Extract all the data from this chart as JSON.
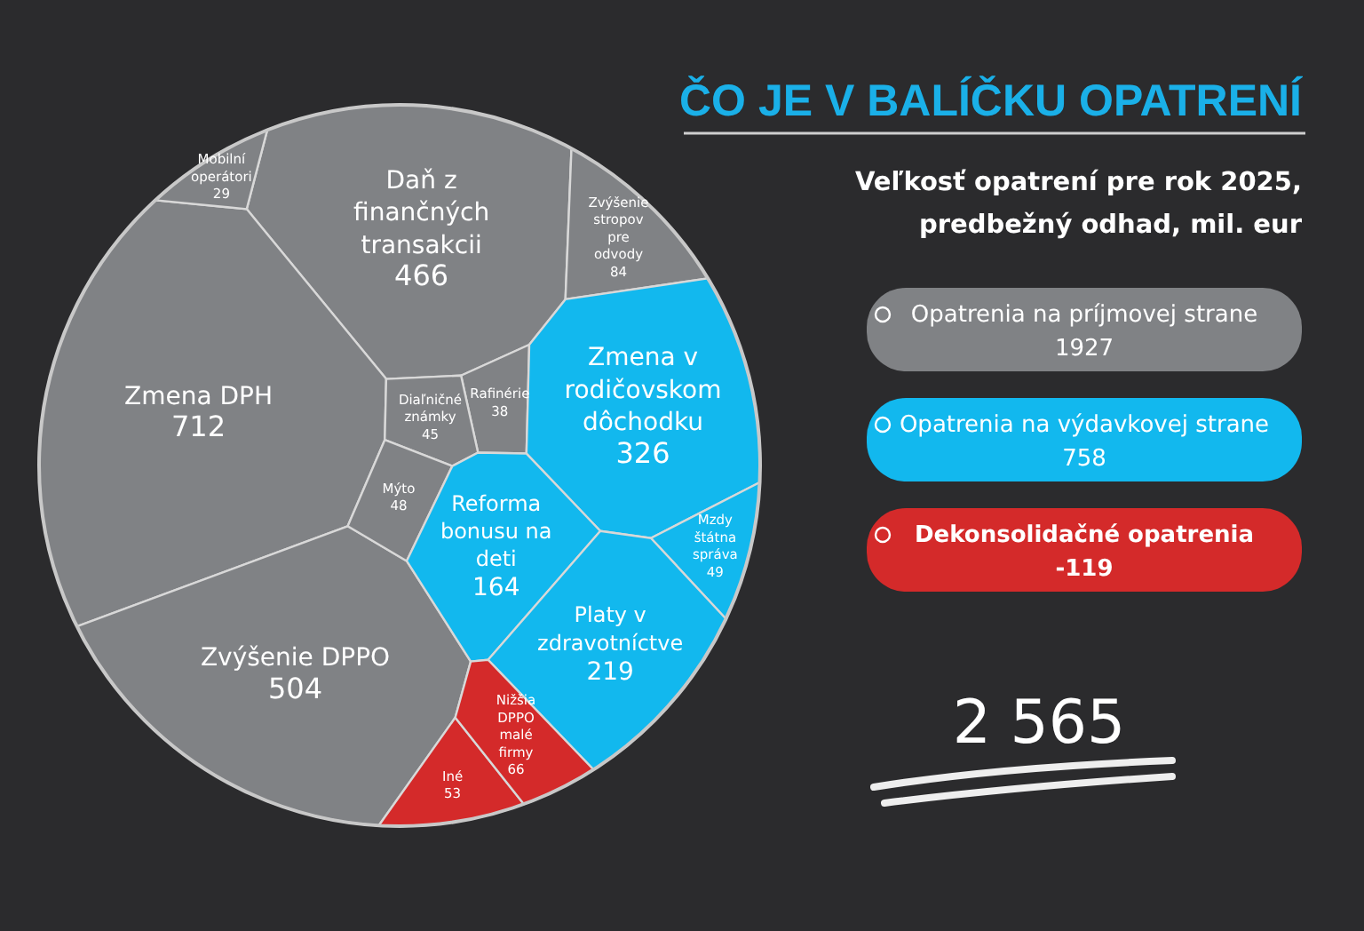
{
  "chart_data": {
    "type": "other",
    "title": "ČO JE V BALÍČKU OPATRENÍ",
    "subtitle": "Veľkosť opatrení pre rok 2025, predbežný odhad, mil. eur",
    "categories": [
      "Daň z finančných transakcii",
      "Zmena DPH",
      "Zvýšenie DPPO",
      "Mobilní operátori",
      "Zvýšenie stropov pre odvody",
      "Rafinérie",
      "Diaľničné známky",
      "Mýto",
      "Zmena v rodičovskom dôchodku",
      "Reforma bonusu na deti",
      "Mzdy štátna správa",
      "Platy v zdravotníctve",
      "Iné",
      "Nižšia DPPO malé firmy"
    ],
    "series": [
      {
        "name": "Opatrenia na príjmovej strane",
        "color": "#808285",
        "values": [
          466,
          712,
          504,
          29,
          84,
          38,
          45,
          48,
          null,
          null,
          null,
          null,
          null,
          null
        ]
      },
      {
        "name": "Opatrenia na výdavkovej strane",
        "color": "#12b8ee",
        "values": [
          null,
          null,
          null,
          null,
          null,
          null,
          null,
          null,
          326,
          164,
          49,
          219,
          null,
          null
        ]
      },
      {
        "name": "Dekonsolidačné opatrenia",
        "color": "#d42a2a",
        "values": [
          null,
          null,
          null,
          null,
          null,
          null,
          null,
          null,
          null,
          null,
          null,
          null,
          53,
          66
        ]
      }
    ],
    "data_labels": true,
    "totals": [
      "1927",
      "758",
      "-119"
    ],
    "legend": "right",
    "annotations": [
      "2 565"
    ]
  }
}
